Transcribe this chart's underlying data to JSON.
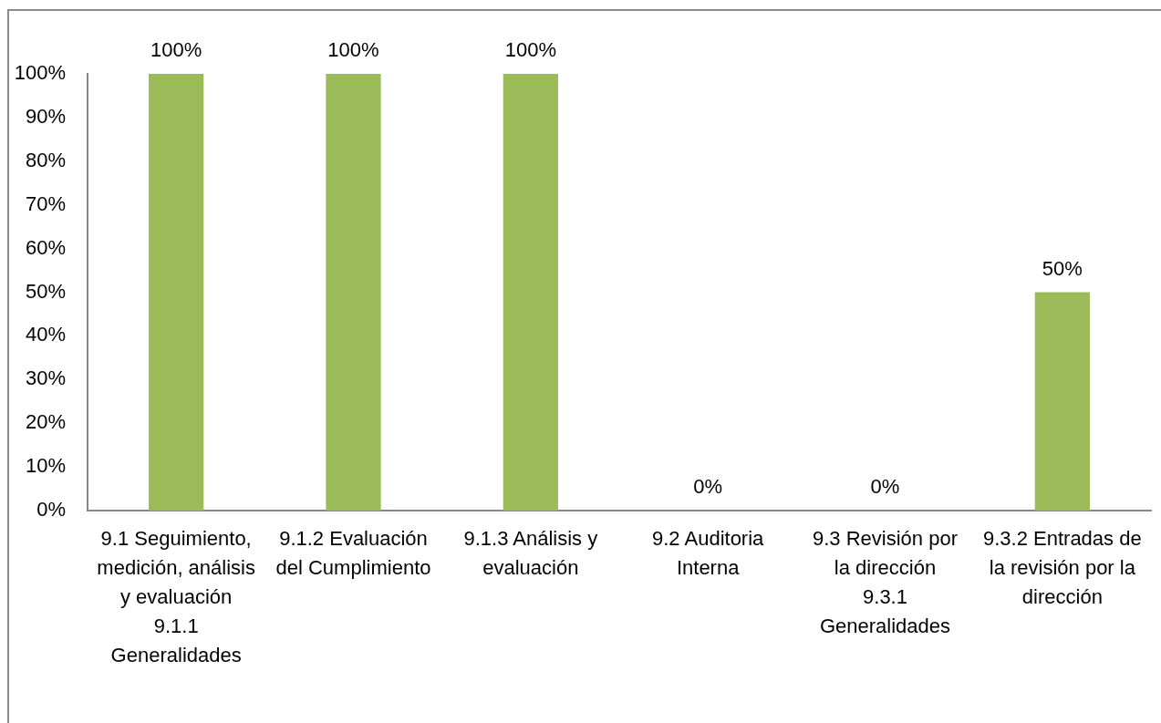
{
  "chart_data": {
    "type": "bar",
    "categories": [
      "9.1 Seguimiento, medición, análisis y evaluación\n9.1.1 Generalidades",
      "9.1.2 Evaluación del Cumplimiento",
      "9.1.3 Análisis y evaluación",
      "9.2 Auditoria Interna",
      "9.3 Revisión por la dirección\n9.3.1 Generalidades",
      "9.3.2 Entradas de la revisión por la dirección"
    ],
    "values": [
      100,
      100,
      100,
      0,
      0,
      50
    ],
    "value_labels": [
      "100%",
      "100%",
      "100%",
      "0%",
      "0%",
      "50%"
    ],
    "color": "#9bbb59",
    "ylim": [
      0,
      100
    ],
    "yticks": [
      {
        "value": 0,
        "label": "0%"
      },
      {
        "value": 10,
        "label": "10%"
      },
      {
        "value": 20,
        "label": "20%"
      },
      {
        "value": 30,
        "label": "30%"
      },
      {
        "value": 40,
        "label": "40%"
      },
      {
        "value": 50,
        "label": "50%"
      },
      {
        "value": 60,
        "label": "60%"
      },
      {
        "value": 70,
        "label": "70%"
      },
      {
        "value": 80,
        "label": "80%"
      },
      {
        "value": 90,
        "label": "90%"
      },
      {
        "value": 100,
        "label": "100%"
      }
    ],
    "grid": false,
    "legend": false
  }
}
